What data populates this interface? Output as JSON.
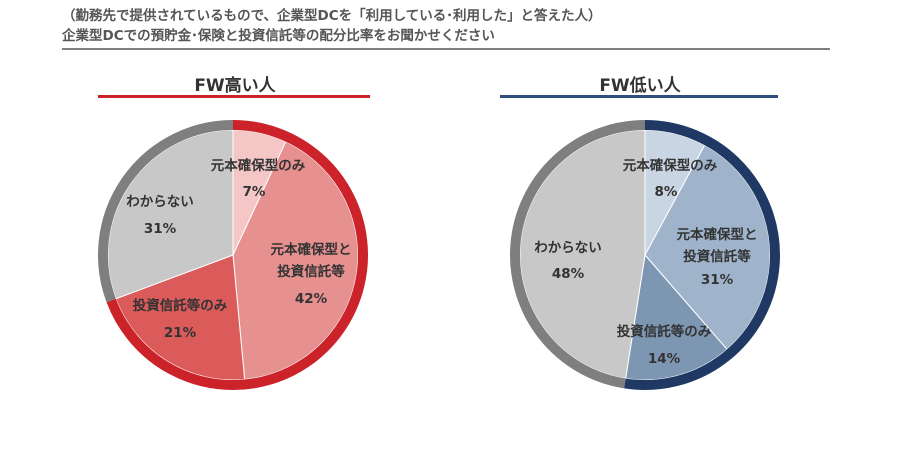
{
  "header": {
    "line1": "（勤務先で提供されているもので、企業型DCを「利用している･利用した」と答えた人）",
    "line2": "企業型DCでの預貯金･保険と投資信託等の配分比率をお聞かせください"
  },
  "chart_data": [
    {
      "type": "pie",
      "title": "FW高い人",
      "slices": [
        {
          "label": "元本確保型のみ",
          "value": 7,
          "value_label": "7%",
          "color": "#f4c6c6"
        },
        {
          "label": "元本確保型と投資信託等",
          "value": 42,
          "value_label": "42%",
          "color": "#e69090"
        },
        {
          "label": "投資信託等のみ",
          "value": 21,
          "value_label": "21%",
          "color": "#db5a5a"
        },
        {
          "label": "わからない",
          "value": 31,
          "value_label": "31%",
          "color": "#c8c8c8"
        }
      ],
      "ring_color": "#cc2229",
      "unknown_ring_color": "#7f7f7f",
      "accent": "#cc2229"
    },
    {
      "type": "pie",
      "title": "FW低い人",
      "slices": [
        {
          "label": "元本確保型のみ",
          "value": 8,
          "value_label": "8%",
          "color": "#c9d5e3"
        },
        {
          "label": "元本確保型と投資信託等",
          "value": 31,
          "value_label": "31%",
          "color": "#9fb4cb"
        },
        {
          "label": "投資信託等のみ",
          "value": 14,
          "value_label": "14%",
          "color": "#7d97b3"
        },
        {
          "label": "わからない",
          "value": 48,
          "value_label": "48%",
          "color": "#c8c8c8"
        }
      ],
      "ring_color": "#1f3864",
      "unknown_ring_color": "#7f7f7f",
      "accent": "#2e4e7e"
    }
  ]
}
